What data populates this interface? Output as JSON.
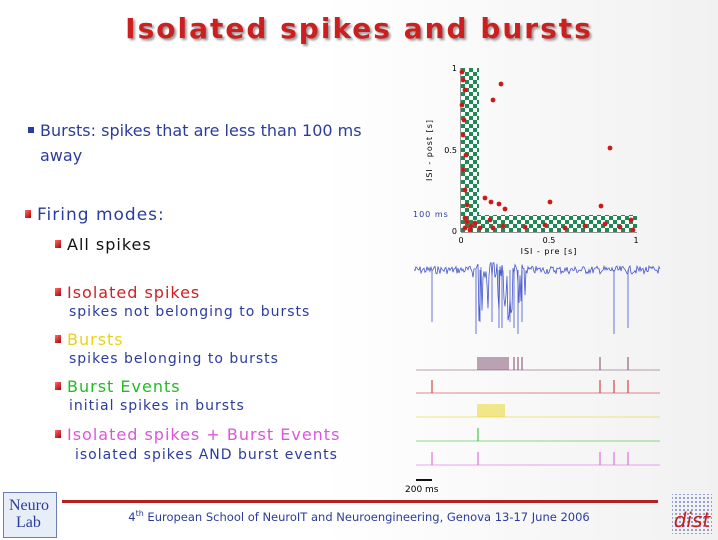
{
  "title": "Isolated spikes and bursts",
  "intro": {
    "text": "Bursts: spikes that are less than 100 ms away"
  },
  "modes_heading": "Firing modes:",
  "modes": [
    {
      "label": "All spikes",
      "color": "#111111",
      "desc": ""
    },
    {
      "label": "Isolated spikes",
      "color": "#cc2222",
      "desc": "spikes not belonging to bursts"
    },
    {
      "label": "Bursts",
      "color": "#e8d21a",
      "desc": "spikes belonging to bursts"
    },
    {
      "label": "Burst Events",
      "color": "#22bb22",
      "desc": "initial spikes in bursts"
    },
    {
      "label": "Isolated spikes + Burst Events",
      "color": "#dd55dd",
      "desc": "isolated spikes AND burst events"
    }
  ],
  "isi_plot": {
    "xlabel": "ISI - pre [s]",
    "ylabel": "ISI - post [s]",
    "x_ticks": [
      "0",
      "0.5",
      "1"
    ],
    "y_ticks": [
      "0",
      "0.5",
      "1"
    ],
    "threshold_label": "100 ms"
  },
  "scale_bar": "200 ms",
  "footer": {
    "sup": "th",
    "pre": "4",
    "text": " European School of NeuroIT and Neuroengineering, Genova 13-17 June 2006"
  },
  "logo_left": {
    "line1": "Neuro",
    "line2": "Lab"
  },
  "logo_right": "dist",
  "colors": {
    "title": "#cc1f1f",
    "text_blue": "#2b3c9e",
    "trace": "#4455cc",
    "footer_line": "#b52020"
  }
}
